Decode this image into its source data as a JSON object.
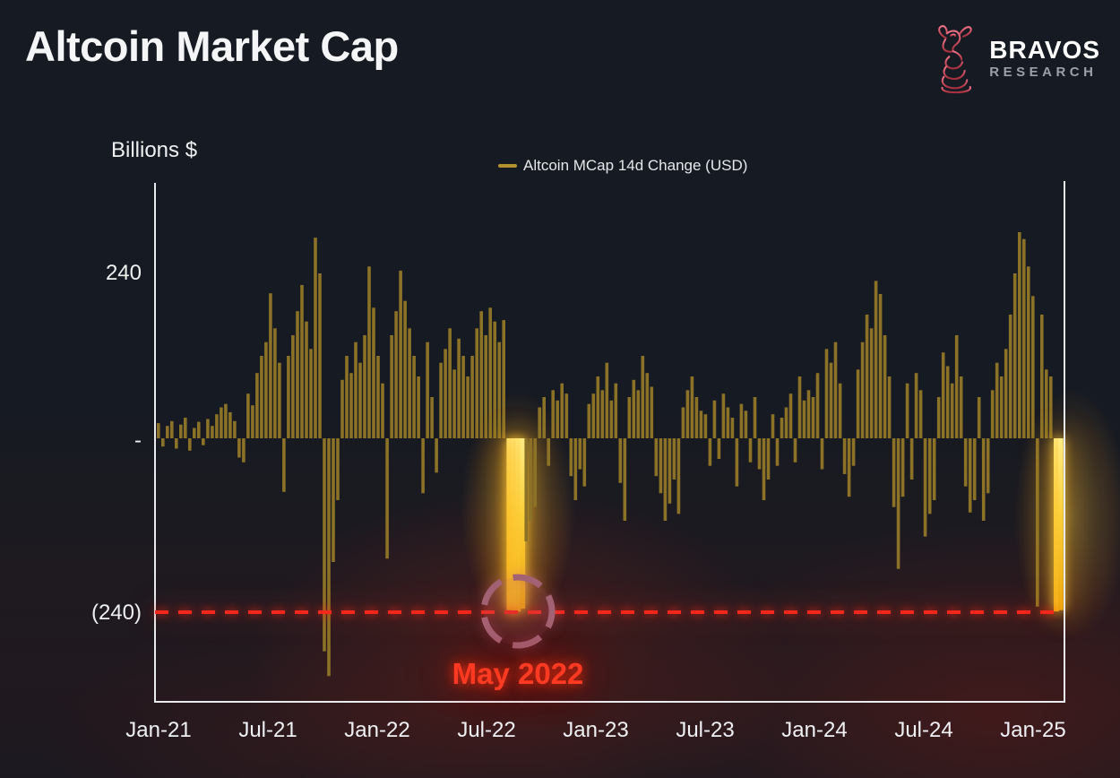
{
  "header": {
    "title": "Altcoin Market Cap",
    "logo": {
      "brand": "BRAVOS",
      "sub": "RESEARCH"
    }
  },
  "chart": {
    "y_axis_title": "Billions $",
    "legend_label": "Altcoin MCap 14d Change (USD)",
    "annotation_label": "May 2022"
  },
  "chart_data": {
    "type": "bar",
    "title": "Altcoin Market Cap",
    "series_label": "Altcoin MCap 14d Change (USD)",
    "unit": "Billions USD",
    "ylabel": "Billions $",
    "y_ticks": [
      "240",
      "-",
      "(240)"
    ],
    "y_tick_values": [
      240,
      0,
      -240
    ],
    "ylim": [
      -380,
      330
    ],
    "x_ticks": [
      "Jan-21",
      "Jul-21",
      "Jan-22",
      "Jul-22",
      "Jan-23",
      "Jul-23",
      "Jan-24",
      "Jul-24",
      "Jan-25"
    ],
    "grid": false,
    "legend_position": "top-center",
    "reference_line": {
      "value": -250,
      "style": "dashed",
      "color": "#f3271c"
    },
    "annotation": {
      "label": "May 2022",
      "at_value": -250,
      "near_x_tick": "Jul-22"
    },
    "colors": {
      "bar": "#8b7226",
      "highlight_top": "#ffeb82",
      "highlight_bottom": "#f0a90e",
      "background": "#161a22"
    },
    "highlight_indices": [
      78,
      79,
      80,
      81,
      200,
      201
    ],
    "values": [
      22,
      -12,
      18,
      25,
      -15,
      20,
      30,
      -18,
      15,
      24,
      -10,
      28,
      18,
      35,
      45,
      50,
      38,
      25,
      -28,
      -35,
      65,
      48,
      95,
      120,
      140,
      211,
      160,
      110,
      -78,
      120,
      150,
      185,
      223,
      170,
      130,
      292,
      240,
      -310,
      -346,
      -180,
      -90,
      85,
      120,
      95,
      140,
      110,
      150,
      250,
      190,
      120,
      80,
      -175,
      150,
      185,
      244,
      200,
      160,
      120,
      90,
      -80,
      140,
      60,
      -50,
      110,
      130,
      160,
      100,
      145,
      120,
      90,
      120,
      160,
      185,
      150,
      190,
      170,
      140,
      172,
      -250,
      -255,
      -252,
      -248,
      -150,
      -120,
      -100,
      45,
      60,
      -40,
      70,
      55,
      80,
      65,
      -55,
      -90,
      -45,
      -70,
      50,
      65,
      90,
      70,
      110,
      55,
      80,
      -65,
      -120,
      60,
      85,
      70,
      120,
      95,
      75,
      -55,
      -80,
      -120,
      -95,
      -60,
      -110,
      45,
      70,
      90,
      60,
      40,
      35,
      -40,
      55,
      -30,
      65,
      45,
      30,
      -70,
      50,
      40,
      -35,
      60,
      -45,
      -90,
      -60,
      35,
      -40,
      30,
      45,
      65,
      -35,
      90,
      55,
      70,
      60,
      95,
      -45,
      130,
      110,
      140,
      80,
      -52,
      -85,
      -40,
      100,
      140,
      180,
      160,
      229,
      210,
      150,
      90,
      -100,
      -190,
      -85,
      80,
      -60,
      95,
      70,
      -143,
      -110,
      -90,
      60,
      125,
      105,
      80,
      150,
      90,
      -70,
      -108,
      -90,
      60,
      -120,
      -80,
      70,
      110,
      90,
      130,
      180,
      240,
      300,
      290,
      250,
      207,
      -245,
      180,
      100,
      90,
      -252,
      -250
    ]
  }
}
